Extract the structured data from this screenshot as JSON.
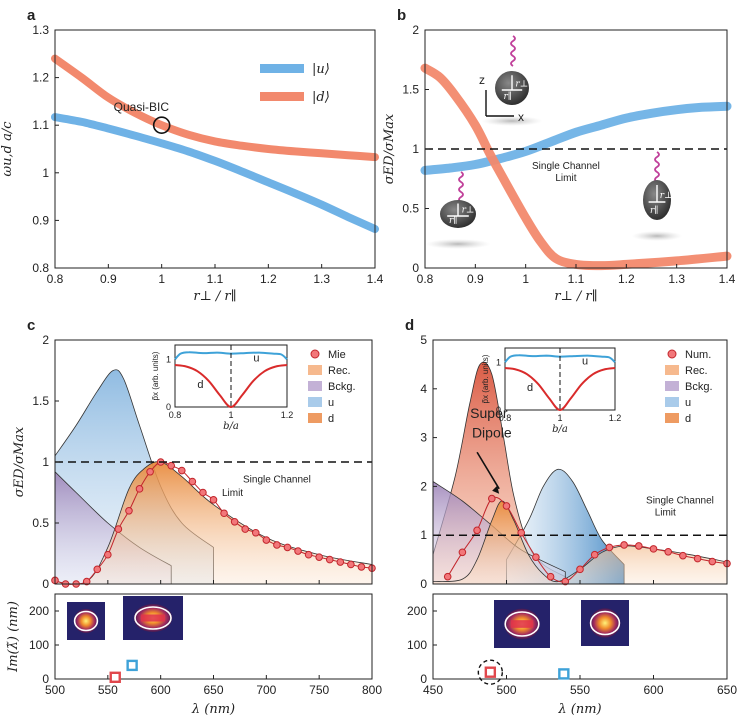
{
  "chart_data": [
    {
      "id": "a",
      "panel_letter": "a",
      "type": "line",
      "xlabel": "r⊥ / r∥",
      "ylabel": "ωu,d a/c",
      "xlim": [
        0.8,
        1.4
      ],
      "ylim": [
        0.8,
        1.3
      ],
      "xticks": [
        0.8,
        0.9,
        1,
        1.1,
        1.2,
        1.3,
        1.4
      ],
      "yticks": [
        0.8,
        0.9,
        1,
        1.1,
        1.2,
        1.3
      ],
      "ytick_labels": [
        "0.8",
        "0.9",
        "1",
        "1.1",
        "1.2",
        "1.3"
      ],
      "legend": [
        "|u⟩",
        "|d⟩"
      ],
      "legend_position": "top-right",
      "annotation": "Quasi-BIC",
      "series": [
        {
          "name": "u",
          "color": "#6fb2e6",
          "x": [
            0.8,
            0.85,
            0.9,
            0.95,
            1.0,
            1.05,
            1.1,
            1.15,
            1.2,
            1.25,
            1.3,
            1.35,
            1.4
          ],
          "y": [
            1.117,
            1.107,
            1.093,
            1.078,
            1.062,
            1.045,
            1.025,
            1.003,
            0.98,
            0.957,
            0.933,
            0.907,
            0.882
          ]
        },
        {
          "name": "d",
          "color": "#f2896d",
          "x": [
            0.8,
            0.85,
            0.9,
            0.95,
            1.0,
            1.05,
            1.1,
            1.15,
            1.2,
            1.25,
            1.3,
            1.35,
            1.4
          ],
          "y": [
            1.24,
            1.2,
            1.158,
            1.126,
            1.1,
            1.08,
            1.066,
            1.057,
            1.05,
            1.045,
            1.041,
            1.037,
            1.033
          ]
        }
      ]
    },
    {
      "id": "b",
      "panel_letter": "b",
      "type": "line",
      "xlabel": "r⊥ / r∥",
      "ylabel": "σED/σMax",
      "xlim": [
        0.8,
        1.4
      ],
      "ylim": [
        0,
        2
      ],
      "xticks": [
        0.8,
        0.9,
        1,
        1.1,
        1.2,
        1.3,
        1.4
      ],
      "yticks": [
        0,
        0.5,
        1,
        1.5,
        2
      ],
      "ytick_labels": [
        "0",
        "0.5",
        "1",
        "1.5",
        "2"
      ],
      "reference_line": 1,
      "reference_label": [
        "Single Channel",
        "Limit"
      ],
      "axis_labels": [
        "z",
        "x"
      ],
      "radius_labels": [
        "r⊥",
        "r∥"
      ],
      "series": [
        {
          "name": "u",
          "color": "#6fb2e6",
          "x": [
            0.8,
            0.85,
            0.9,
            0.95,
            1.0,
            1.05,
            1.1,
            1.15,
            1.2,
            1.25,
            1.3,
            1.35,
            1.4
          ],
          "y": [
            0.82,
            0.84,
            0.87,
            0.92,
            0.98,
            1.06,
            1.14,
            1.2,
            1.26,
            1.3,
            1.33,
            1.35,
            1.36
          ]
        },
        {
          "name": "d",
          "color": "#f2896d",
          "x": [
            0.8,
            0.83,
            0.86,
            0.9,
            0.93,
            0.96,
            1.0,
            1.03,
            1.06,
            1.1,
            1.15,
            1.2,
            1.3,
            1.4
          ],
          "y": [
            1.68,
            1.6,
            1.45,
            1.2,
            0.95,
            0.72,
            0.42,
            0.22,
            0.08,
            0.03,
            0.02,
            0.03,
            0.06,
            0.1
          ]
        }
      ]
    },
    {
      "id": "c",
      "panel_letter": "c",
      "type": "area",
      "xlabel": "λ (nm)",
      "ylabel": "σED/σMax",
      "xlim": [
        500,
        800
      ],
      "ylim": [
        0,
        2
      ],
      "xticks": [
        500,
        550,
        600,
        650,
        700,
        750,
        800
      ],
      "yticks": [
        0,
        0.5,
        1,
        1.5,
        2
      ],
      "ytick_labels": [
        "0",
        "0.5",
        "1",
        "1.5",
        "2"
      ],
      "reference_line": 1,
      "reference_label": [
        "Single Channel",
        "Limit"
      ],
      "legend": [
        "Mie",
        "Rec.",
        "Bckg.",
        "u",
        "d"
      ],
      "legend_position": "top-right",
      "area_u": {
        "x": [
          500,
          520,
          540,
          555,
          565,
          580,
          600,
          620,
          650
        ],
        "y": [
          1.05,
          1.3,
          1.58,
          1.75,
          1.68,
          1.3,
          0.8,
          0.5,
          0.3
        ]
      },
      "area_bckg": {
        "x": [
          500,
          520,
          550,
          580,
          610
        ],
        "y": [
          0.92,
          0.75,
          0.5,
          0.3,
          0.15
        ]
      },
      "area_d_rec": {
        "x": [
          500,
          530,
          550,
          570,
          585,
          600,
          620,
          650,
          700,
          750,
          800
        ],
        "y": [
          0.02,
          0.02,
          0.3,
          0.78,
          0.95,
          1.0,
          0.88,
          0.65,
          0.38,
          0.24,
          0.16
        ]
      },
      "mie_points": {
        "x": [
          500,
          510,
          520,
          530,
          540,
          550,
          560,
          570,
          580,
          590,
          600,
          610,
          620,
          630,
          640,
          650,
          660,
          670,
          680,
          690,
          700,
          710,
          720,
          730,
          740,
          750,
          760,
          770,
          780,
          790,
          800
        ],
        "y": [
          0.03,
          0.0,
          0.0,
          0.02,
          0.12,
          0.24,
          0.45,
          0.6,
          0.78,
          0.92,
          1.0,
          0.97,
          0.93,
          0.84,
          0.75,
          0.69,
          0.58,
          0.51,
          0.45,
          0.42,
          0.36,
          0.32,
          0.3,
          0.27,
          0.24,
          0.22,
          0.2,
          0.18,
          0.16,
          0.14,
          0.13
        ]
      },
      "inset": {
        "xlabel": "b/a",
        "ylabel": "p̃x (arb. units)",
        "xlim": [
          0.8,
          1.2
        ],
        "ylim": [
          0,
          1.3
        ],
        "xticks": [
          0.8,
          1,
          1.2
        ],
        "yticks": [
          0,
          1
        ],
        "labels": [
          "u",
          "d"
        ],
        "u": {
          "x": [
            0.8,
            0.82,
            0.85,
            0.9,
            0.95,
            1.0,
            1.05,
            1.1,
            1.15,
            1.18,
            1.2
          ],
          "y": [
            1.0,
            1.12,
            1.15,
            1.13,
            1.14,
            1.12,
            1.13,
            1.14,
            1.12,
            1.1,
            1.0
          ]
        },
        "d": {
          "x": [
            0.8,
            0.84,
            0.88,
            0.92,
            0.96,
            1.0,
            1.04,
            1.08,
            1.12,
            1.16,
            1.2
          ],
          "y": [
            0.88,
            0.85,
            0.75,
            0.55,
            0.25,
            0.0,
            0.25,
            0.55,
            0.75,
            0.85,
            0.88
          ]
        }
      }
    },
    {
      "id": "c_im",
      "type": "scatter",
      "xlabel": "λ (nm)",
      "ylabel": "Im(λ̃) (nm)",
      "xlim": [
        500,
        800
      ],
      "ylim": [
        0,
        250
      ],
      "xticks": [
        500,
        550,
        600,
        650,
        700,
        750,
        800
      ],
      "yticks": [
        0,
        100,
        200
      ],
      "ytick_labels": [
        "0",
        "100",
        "200"
      ],
      "points": [
        {
          "x": 557,
          "y": 5,
          "mode": "d",
          "color": "#e0474c"
        },
        {
          "x": 573,
          "y": 40,
          "mode": "u",
          "color": "#3ea2d8"
        }
      ]
    },
    {
      "id": "d",
      "panel_letter": "d",
      "type": "area",
      "xlabel": "λ (nm)",
      "ylabel": "",
      "xlim": [
        450,
        650
      ],
      "ylim": [
        0,
        5
      ],
      "xticks": [
        450,
        500,
        550,
        600,
        650
      ],
      "yticks": [
        0,
        1,
        2,
        3,
        4,
        5
      ],
      "ytick_labels": [
        "0",
        "1",
        "2",
        "3",
        "4",
        "5"
      ],
      "reference_line": 1,
      "reference_label": [
        "Single Channel",
        "Limit"
      ],
      "annotation": [
        "Super",
        "Dipole"
      ],
      "legend": [
        "Num.",
        "Rec.",
        "Bckg.",
        "u",
        "d"
      ],
      "legend_position": "top-right",
      "area_d": {
        "x": [
          450,
          465,
          475,
          482,
          490,
          498,
          505,
          515,
          525,
          540
        ],
        "y": [
          0.6,
          2.2,
          3.7,
          4.5,
          4.3,
          3.0,
          1.8,
          0.8,
          0.4,
          0.15
        ]
      },
      "area_u": {
        "x": [
          500,
          515,
          525,
          535,
          545,
          555,
          565,
          580
        ],
        "y": [
          0.5,
          1.3,
          2.0,
          2.35,
          2.1,
          1.5,
          0.9,
          0.4
        ]
      },
      "area_bckg": {
        "x": [
          450,
          470,
          490,
          510,
          540
        ],
        "y": [
          2.1,
          1.7,
          1.2,
          0.7,
          0.25
        ]
      },
      "area_rec": {
        "x": [
          450,
          470,
          480,
          490,
          497,
          505,
          515,
          525,
          535,
          550,
          565,
          580,
          600,
          625,
          650
        ],
        "y": [
          0.05,
          0.1,
          0.5,
          1.3,
          1.7,
          1.3,
          0.6,
          0.2,
          0.05,
          0.3,
          0.65,
          0.78,
          0.72,
          0.6,
          0.45
        ]
      },
      "num_points": {
        "x": [
          460,
          470,
          480,
          490,
          500,
          510,
          520,
          530,
          540,
          550,
          560,
          570,
          580,
          590,
          600,
          610,
          620,
          630,
          640,
          650
        ],
        "y": [
          0.15,
          0.65,
          1.1,
          1.75,
          1.6,
          1.05,
          0.55,
          0.15,
          0.05,
          0.3,
          0.6,
          0.75,
          0.8,
          0.78,
          0.72,
          0.66,
          0.58,
          0.52,
          0.46,
          0.42
        ]
      },
      "inset": {
        "xlabel": "b/a",
        "ylabel": "p̃x (arb. units)",
        "xlim": [
          0.8,
          1.2
        ],
        "ylim": [
          0,
          1.3
        ],
        "xticks": [
          0.8,
          1,
          1.2
        ],
        "yticks": [
          0,
          1
        ],
        "labels": [
          "u",
          "d"
        ],
        "u": {
          "x": [
            0.8,
            0.82,
            0.85,
            0.9,
            0.95,
            1.0,
            1.05,
            1.1,
            1.15,
            1.18,
            1.2
          ],
          "y": [
            1.0,
            1.12,
            1.15,
            1.13,
            1.14,
            1.12,
            1.13,
            1.14,
            1.12,
            1.1,
            1.0
          ]
        },
        "d": {
          "x": [
            0.8,
            0.84,
            0.88,
            0.92,
            0.96,
            1.0,
            1.04,
            1.08,
            1.12,
            1.16,
            1.2
          ],
          "y": [
            0.88,
            0.85,
            0.75,
            0.55,
            0.25,
            0.0,
            0.25,
            0.55,
            0.75,
            0.85,
            0.88
          ]
        }
      }
    },
    {
      "id": "d_im",
      "type": "scatter",
      "xlabel": "λ (nm)",
      "ylabel": "",
      "xlim": [
        450,
        650
      ],
      "ylim": [
        0,
        250
      ],
      "xticks": [
        450,
        500,
        550,
        600,
        650
      ],
      "yticks": [
        0,
        100,
        200
      ],
      "ytick_labels": [
        "0",
        "100",
        "200"
      ],
      "points": [
        {
          "x": 489,
          "y": 20,
          "mode": "d",
          "color": "#e0474c",
          "circled": true
        },
        {
          "x": 539,
          "y": 15,
          "mode": "u",
          "color": "#3ea2d8"
        }
      ]
    }
  ]
}
